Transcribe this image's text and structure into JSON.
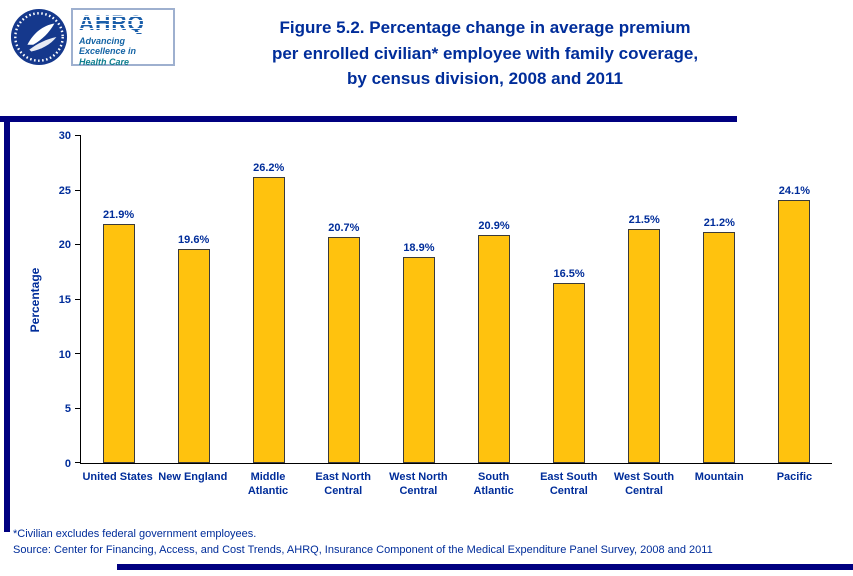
{
  "header": {
    "title_line1": "Figure 5.2. Percentage change in average premium",
    "title_line2": "per enrolled civilian* employee with family coverage,",
    "title_line3": "by census division, 2008 and 2011",
    "ahrq_logo": {
      "wordmark": "AHRQ",
      "tagline_line1": "Advancing",
      "tagline_line2": "Excellence in",
      "tagline_line3": "Health Care"
    }
  },
  "chart_data": {
    "type": "bar",
    "categories": [
      "United States",
      "New England",
      "Middle Atlantic",
      "East North Central",
      "West North Central",
      "South Atlantic",
      "East South Central",
      "West South Central",
      "Mountain",
      "Pacific"
    ],
    "values": [
      21.9,
      19.6,
      26.2,
      20.7,
      18.9,
      20.9,
      16.5,
      21.5,
      21.2,
      24.1
    ],
    "labels": [
      "21.9%",
      "19.6%",
      "26.2%",
      "20.7%",
      "18.9%",
      "20.9%",
      "16.5%",
      "21.5%",
      "21.2%",
      "24.1%"
    ],
    "title": "Figure 5.2. Percentage change in average premium per enrolled civilian* employee with family coverage, by census division, 2008 and 2011",
    "xlabel": "",
    "ylabel": "Percentage",
    "ylim": [
      0,
      30
    ],
    "yticks": [
      0,
      5,
      10,
      15,
      20,
      25,
      30
    ],
    "grid": false,
    "legend": false,
    "bar_color": "#ffc20e",
    "label_color": "#002d9a"
  },
  "footer": {
    "note": "*Civilian excludes federal government employees.",
    "source": "Source: Center for Financing, Access, and Cost Trends, AHRQ, Insurance Component of the Medical Expenditure Panel Survey, 2008 and 2011"
  },
  "colors": {
    "accent_text": "#002d9a",
    "rule": "#000080",
    "bar": "#ffc20e"
  }
}
